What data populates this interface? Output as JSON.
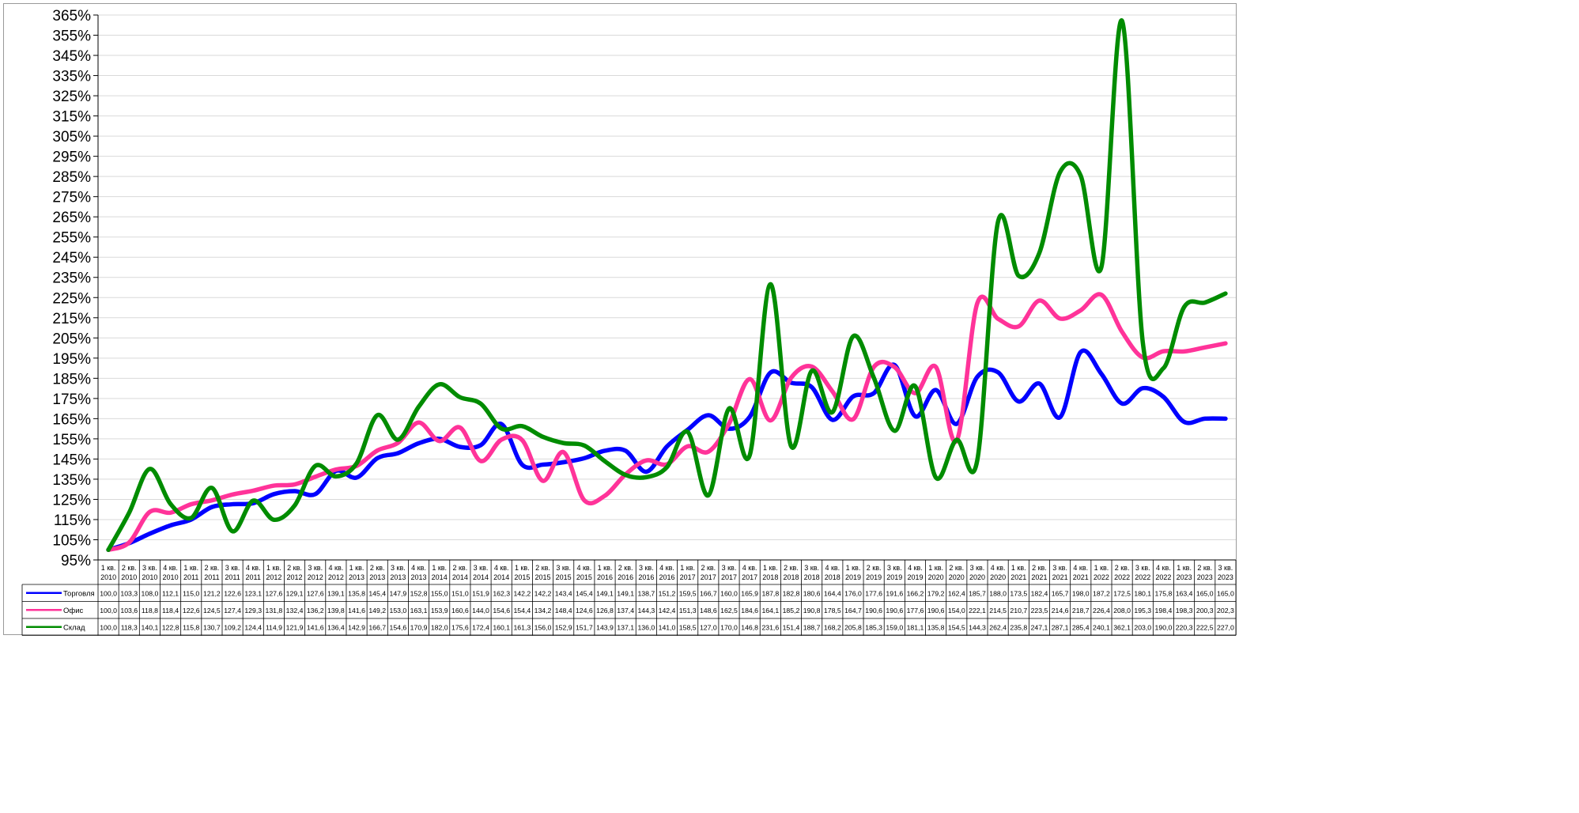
{
  "chart_data": {
    "type": "line",
    "categories": [
      [
        "1 кв.",
        "2010"
      ],
      [
        "2 кв.",
        "2010"
      ],
      [
        "3 кв.",
        "2010"
      ],
      [
        "4 кв.",
        "2010"
      ],
      [
        "1 кв.",
        "2011"
      ],
      [
        "2 кв.",
        "2011"
      ],
      [
        "3 кв.",
        "2011"
      ],
      [
        "4 кв.",
        "2011"
      ],
      [
        "1 кв.",
        "2012"
      ],
      [
        "2 кв.",
        "2012"
      ],
      [
        "3 кв.",
        "2012"
      ],
      [
        "4 кв.",
        "2012"
      ],
      [
        "1 кв.",
        "2013"
      ],
      [
        "2 кв.",
        "2013"
      ],
      [
        "3 кв.",
        "2013"
      ],
      [
        "4 кв.",
        "2013"
      ],
      [
        "1 кв.",
        "2014"
      ],
      [
        "2 кв.",
        "2014"
      ],
      [
        "3 кв.",
        "2014"
      ],
      [
        "4 кв.",
        "2014"
      ],
      [
        "1 кв.",
        "2015"
      ],
      [
        "2 кв.",
        "2015"
      ],
      [
        "3 кв.",
        "2015"
      ],
      [
        "4 кв.",
        "2015"
      ],
      [
        "1 кв.",
        "2016"
      ],
      [
        "2 кв.",
        "2016"
      ],
      [
        "3 кв.",
        "2016"
      ],
      [
        "4 кв.",
        "2016"
      ],
      [
        "1 кв.",
        "2017"
      ],
      [
        "2 кв.",
        "2017"
      ],
      [
        "3 кв.",
        "2017"
      ],
      [
        "4 кв.",
        "2017"
      ],
      [
        "1 кв.",
        "2018"
      ],
      [
        "2 кв.",
        "2018"
      ],
      [
        "3 кв.",
        "2018"
      ],
      [
        "4 кв.",
        "2018"
      ],
      [
        "1 кв.",
        "2019"
      ],
      [
        "2 кв.",
        "2019"
      ],
      [
        "3 кв.",
        "2019"
      ],
      [
        "4 кв.",
        "2019"
      ],
      [
        "1 кв.",
        "2020"
      ],
      [
        "2 кв.",
        "2020"
      ],
      [
        "3 кв.",
        "2020"
      ],
      [
        "4 кв.",
        "2020"
      ],
      [
        "1 кв.",
        "2021"
      ],
      [
        "2 кв.",
        "2021"
      ],
      [
        "3 кв.",
        "2021"
      ],
      [
        "4 кв.",
        "2021"
      ],
      [
        "1 кв.",
        "2022"
      ],
      [
        "2 кв.",
        "2022"
      ],
      [
        "3 кв.",
        "2022"
      ],
      [
        "4 кв.",
        "2022"
      ],
      [
        "1 кв.",
        "2023"
      ],
      [
        "2 кв.",
        "2023"
      ],
      [
        "3 кв.",
        "2023"
      ]
    ],
    "series": [
      {
        "name": "Торговля",
        "color": "#0000ff",
        "values": [
          "100,0",
          "103,3",
          "108,0",
          "112,1",
          "115,0",
          "121,2",
          "122,6",
          "123,1",
          "127,6",
          "129,1",
          "127,6",
          "139,1",
          "135,8",
          "145,4",
          "147,9",
          "152,8",
          "155,0",
          "151,0",
          "151,9",
          "162,3",
          "142,2",
          "142,2",
          "143,4",
          "145,4",
          "149,1",
          "149,1",
          "138,7",
          "151,2",
          "159,5",
          "166,7",
          "160,0",
          "165,9",
          "187,8",
          "182,8",
          "180,6",
          "164,4",
          "176,0",
          "177,6",
          "191,6",
          "166,2",
          "179,2",
          "162,4",
          "185,7",
          "188,0",
          "173,5",
          "182,4",
          "165,7",
          "198,0",
          "187,2",
          "172,5",
          "180,1",
          "175,8",
          "163,4",
          "165,0",
          "165,0"
        ]
      },
      {
        "name": "Офис",
        "color": "#ff3399",
        "values": [
          "100,0",
          "103,6",
          "118,8",
          "118,4",
          "122,6",
          "124,5",
          "127,4",
          "129,3",
          "131,8",
          "132,4",
          "136,2",
          "139,8",
          "141,6",
          "149,2",
          "153,0",
          "163,1",
          "153,9",
          "160,6",
          "144,0",
          "154,6",
          "154,4",
          "134,2",
          "148,4",
          "124,6",
          "126,8",
          "137,4",
          "144,3",
          "142,4",
          "151,3",
          "148,6",
          "162,5",
          "184,6",
          "164,1",
          "185,2",
          "190,8",
          "178,5",
          "164,7",
          "190,6",
          "190,6",
          "177,6",
          "190,6",
          "154,0",
          "222,1",
          "214,5",
          "210,7",
          "223,5",
          "214,6",
          "218,7",
          "226,4",
          "208,0",
          "195,3",
          "198,4",
          "198,3",
          "200,3",
          "202,3"
        ]
      },
      {
        "name": "Склад",
        "color": "#008c00",
        "values": [
          "100,0",
          "118,3",
          "140,1",
          "122,8",
          "115,8",
          "130,7",
          "109,2",
          "124,4",
          "114,9",
          "121,9",
          "141,6",
          "136,4",
          "142,9",
          "166,7",
          "154,6",
          "170,9",
          "182,0",
          "175,6",
          "172,4",
          "160,1",
          "161,3",
          "156,0",
          "152,9",
          "151,7",
          "143,9",
          "137,1",
          "136,0",
          "141,0",
          "158,5",
          "127,0",
          "170,0",
          "146,8",
          "231,6",
          "151,4",
          "188,7",
          "168,2",
          "205,8",
          "185,3",
          "159,0",
          "181,1",
          "135,8",
          "154,5",
          "144,3",
          "262,4",
          "235,8",
          "247,1",
          "287,1",
          "285,4",
          "240,1",
          "362,1",
          "203,0",
          "190,0",
          "220,3",
          "222,5",
          "227,0"
        ]
      }
    ],
    "y_ticks": [
      "95%",
      "105%",
      "115%",
      "125%",
      "135%",
      "145%",
      "155%",
      "165%",
      "175%",
      "185%",
      "195%",
      "205%",
      "215%",
      "225%",
      "235%",
      "245%",
      "255%",
      "265%",
      "275%",
      "285%",
      "295%",
      "305%",
      "315%",
      "325%",
      "335%",
      "345%",
      "355%",
      "365%"
    ],
    "ylim": [
      95,
      365
    ],
    "grid": true,
    "legend": "data-table-below"
  }
}
